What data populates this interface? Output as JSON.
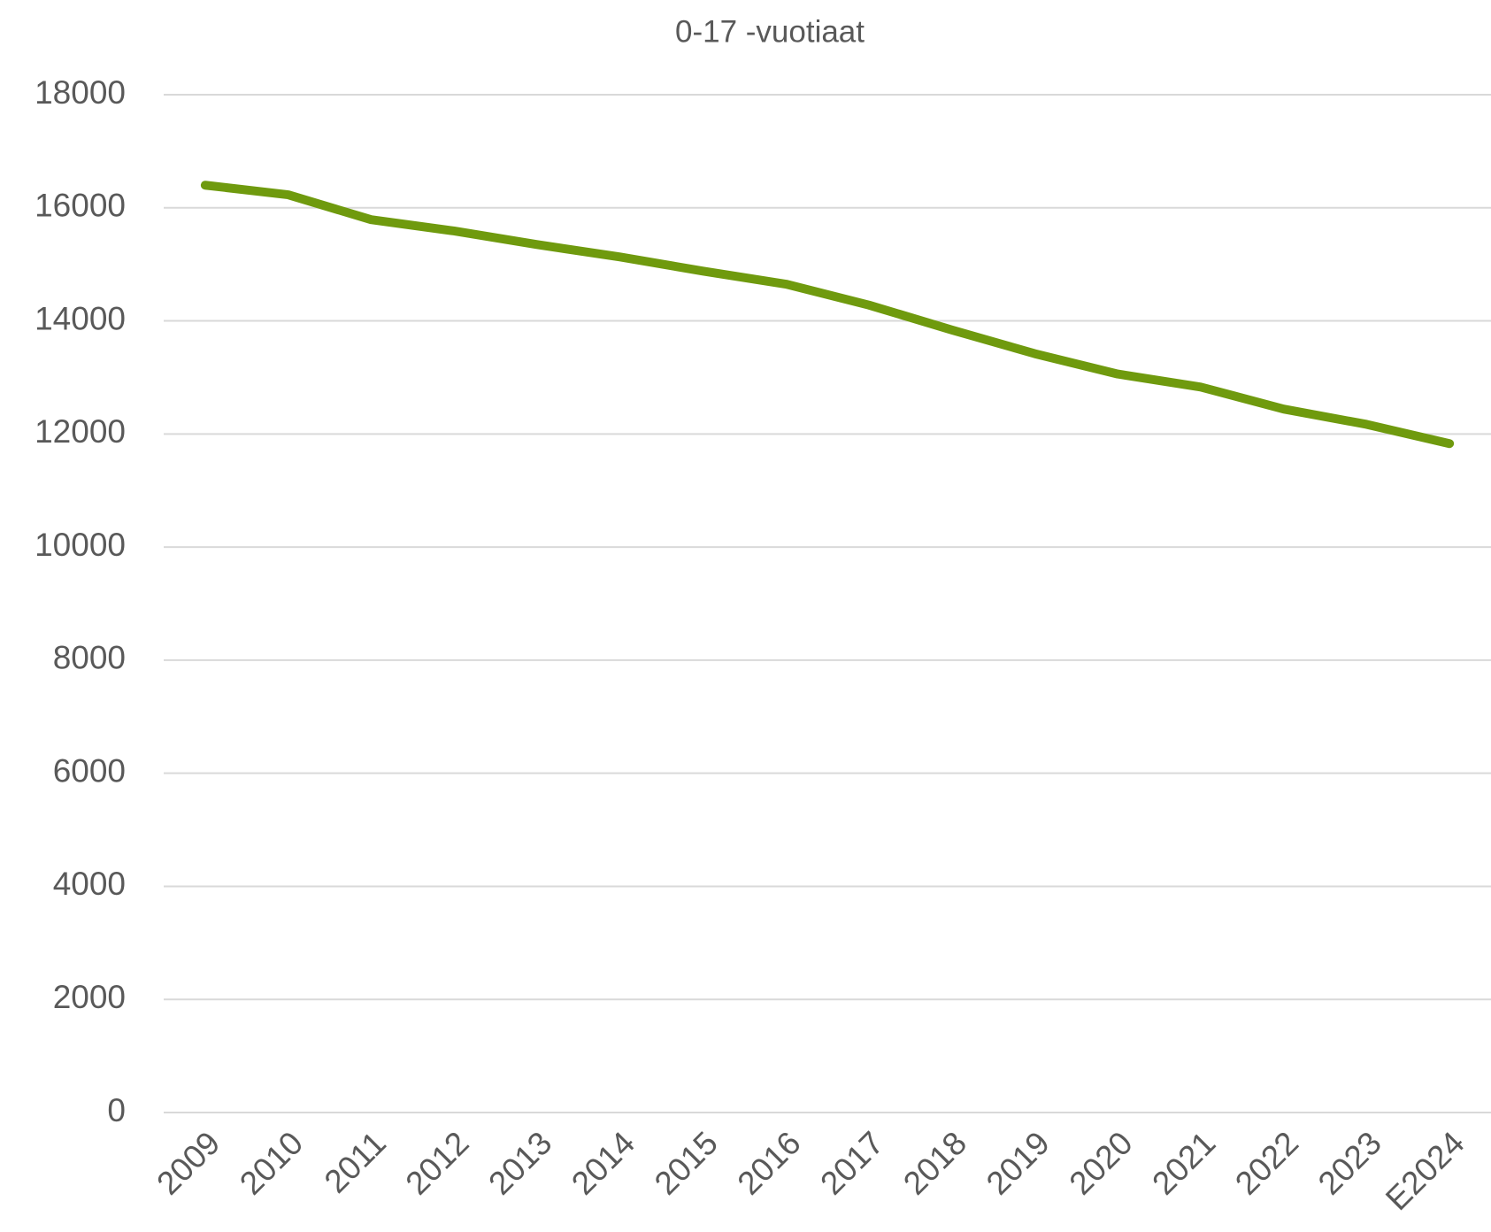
{
  "chart_data": {
    "type": "line",
    "title": "0-17 -vuotiaat",
    "categories": [
      "2009",
      "2010",
      "2011",
      "2012",
      "2013",
      "2014",
      "2015",
      "2016",
      "2017",
      "2018",
      "2019",
      "2020",
      "2021",
      "2022",
      "2023",
      "E2024"
    ],
    "series": [
      {
        "name": "0-17 -vuotiaat",
        "color": "#6f9a0e",
        "values": [
          16400,
          16230,
          15790,
          15590,
          15350,
          15130,
          14880,
          14650,
          14280,
          13840,
          13420,
          13060,
          12830,
          12440,
          12170,
          11830
        ]
      }
    ],
    "ylim": [
      0,
      18000
    ],
    "yticks": [
      0,
      2000,
      4000,
      6000,
      8000,
      10000,
      12000,
      14000,
      16000,
      18000
    ],
    "grid": true
  }
}
